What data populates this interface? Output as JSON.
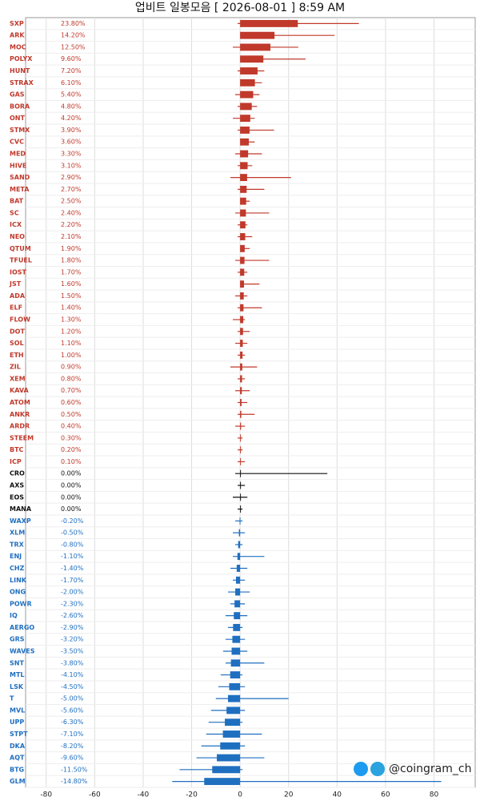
{
  "chart_data": {
    "type": "candle-bar",
    "title": "업비트 일봉모음 [ 2026-08-01 ]  8:59 AM",
    "watermark": "@coingram_ch",
    "up_color": "#c0392b",
    "down_color": "#1f6fc0",
    "flat_color": "#111111",
    "xlim": [
      -88.5,
      97
    ],
    "xticks": [
      -80,
      -60,
      -40,
      -20,
      0,
      20,
      40,
      60,
      80
    ],
    "grid": true,
    "categories": [
      "SXP",
      "ARK",
      "MOC",
      "POLYX",
      "HUNT",
      "STRAX",
      "GAS",
      "BORA",
      "ONT",
      "STMX",
      "CVC",
      "MED",
      "HIVE",
      "SAND",
      "META",
      "BAT",
      "SC",
      "ICX",
      "NEO",
      "QTUM",
      "TFUEL",
      "IOST",
      "JST",
      "ADA",
      "ELF",
      "FLOW",
      "DOT",
      "SOL",
      "ETH",
      "ZIL",
      "XEM",
      "KAVA",
      "ATOM",
      "ANKR",
      "ARDR",
      "STEEM",
      "BTC",
      "ICP",
      "CRO",
      "AXS",
      "EOS",
      "MANA",
      "WAXP",
      "XLM",
      "TRX",
      "ENJ",
      "CHZ",
      "LINK",
      "ONG",
      "POWR",
      "IQ",
      "AERGO",
      "GRS",
      "WAVES",
      "SNT",
      "MTL",
      "LSK",
      "T",
      "MVL",
      "UPP",
      "STPT",
      "DKA",
      "AQT",
      "BTG",
      "GLM"
    ],
    "values": [
      23.8,
      14.2,
      12.5,
      9.6,
      7.2,
      6.1,
      5.4,
      4.8,
      4.2,
      3.9,
      3.6,
      3.3,
      3.1,
      2.9,
      2.7,
      2.5,
      2.4,
      2.2,
      2.1,
      1.9,
      1.8,
      1.7,
      1.6,
      1.5,
      1.4,
      1.3,
      1.2,
      1.1,
      1.0,
      0.9,
      0.8,
      0.7,
      0.6,
      0.5,
      0.4,
      0.3,
      0.2,
      0.1,
      0,
      0,
      0,
      0,
      -0.2,
      -0.5,
      -0.8,
      -1.1,
      -1.4,
      -1.7,
      -2.0,
      -2.3,
      -2.6,
      -2.9,
      -3.2,
      -3.5,
      -3.8,
      -4.1,
      -4.5,
      -5.0,
      -5.6,
      -6.3,
      -7.1,
      -8.2,
      -9.6,
      -11.5,
      -14.8
    ],
    "value_labels": [
      "23.80%",
      "14.20%",
      "12.50%",
      "9.60%",
      "7.20%",
      "6.10%",
      "5.40%",
      "4.80%",
      "4.20%",
      "3.90%",
      "3.60%",
      "3.30%",
      "3.10%",
      "2.90%",
      "2.70%",
      "2.50%",
      "2.40%",
      "2.20%",
      "2.10%",
      "1.90%",
      "1.80%",
      "1.70%",
      "1.60%",
      "1.50%",
      "1.40%",
      "1.30%",
      "1.20%",
      "1.10%",
      "1.00%",
      "0.90%",
      "0.80%",
      "0.70%",
      "0.60%",
      "0.50%",
      "0.40%",
      "0.30%",
      "0.20%",
      "0.10%",
      "0.00%",
      "0.00%",
      "0.00%",
      "0.00%",
      "-0.20%",
      "-0.50%",
      "-0.80%",
      "-1.10%",
      "-1.40%",
      "-1.70%",
      "-2.00%",
      "-2.30%",
      "-2.60%",
      "-2.90%",
      "-3.20%",
      "-3.50%",
      "-3.80%",
      "-4.10%",
      "-4.50%",
      "-5.00%",
      "-5.60%",
      "-6.30%",
      "-7.10%",
      "-8.20%",
      "-9.60%",
      "-11.50%",
      "-14.80%"
    ],
    "lows": [
      -1,
      0,
      -3,
      0,
      -1,
      0,
      -2,
      -1,
      -3,
      -1,
      0,
      -2,
      -1,
      -4,
      -1,
      0,
      -2,
      -1,
      -1,
      0,
      -2,
      -1,
      0,
      -2,
      -1,
      -3,
      -1,
      -2,
      -1,
      -4,
      -1,
      -2,
      -1,
      -1,
      -2,
      -1,
      -1,
      -1,
      -2,
      -1,
      -3,
      -1,
      -2,
      -3,
      -2,
      -3,
      -4,
      -3,
      -5,
      -4,
      -6,
      -5,
      -6,
      -7,
      -6,
      -8,
      -9,
      -10,
      -12,
      -13,
      -14,
      -16,
      -18,
      -25,
      -28
    ],
    "highs": [
      49,
      39,
      24,
      27,
      10,
      9,
      8,
      7,
      6,
      14,
      6,
      9,
      5,
      21,
      10,
      4,
      12,
      3,
      5,
      4,
      12,
      3,
      8,
      3,
      9,
      2,
      4,
      3,
      2,
      7,
      2,
      4,
      3,
      6,
      2,
      1,
      1,
      2,
      36,
      2,
      3,
      1,
      1,
      2,
      1,
      10,
      3,
      2,
      4,
      2,
      3,
      1,
      2,
      3,
      10,
      1,
      2,
      20,
      2,
      1,
      9,
      2,
      10,
      1,
      83
    ]
  }
}
